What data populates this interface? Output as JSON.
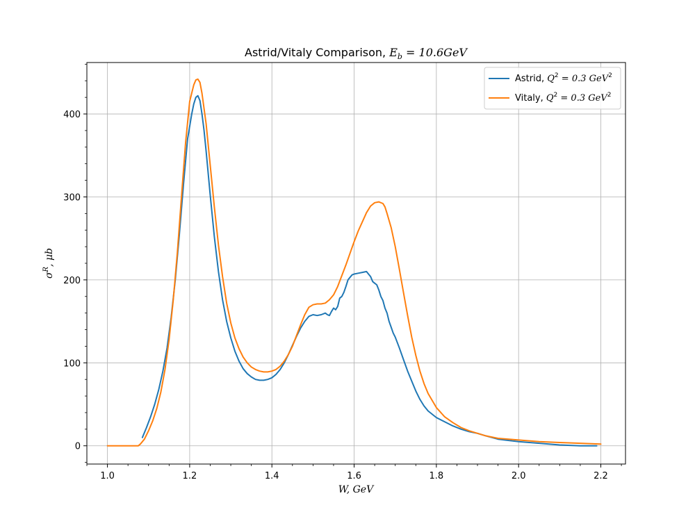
{
  "chart_data": {
    "type": "line",
    "title": "Astrid/Vitaly Comparison, E_b = 10.6GeV",
    "title_parts": {
      "prefix": "Astrid/Vitaly Comparison, ",
      "math": "E",
      "sub": "b",
      "suffix": " = 10.6GeV"
    },
    "xlabel": "W, GeV",
    "ylabel": "σ^R, μb",
    "xlim": [
      0.95,
      2.26
    ],
    "ylim": [
      -22,
      462
    ],
    "xticks": [
      1.0,
      1.2,
      1.4,
      1.6,
      1.8,
      2.0,
      2.2
    ],
    "xtick_labels": [
      "1.0",
      "1.2",
      "1.4",
      "1.6",
      "1.8",
      "2.0",
      "2.2"
    ],
    "yticks": [
      0,
      100,
      200,
      300,
      400
    ],
    "ytick_labels": [
      "0",
      "100",
      "200",
      "300",
      "400"
    ],
    "grid": true,
    "legend_position": "top-right",
    "series": [
      {
        "name": "Astrid, Q^2 = 0.3 GeV^2",
        "legend_label": {
          "prefix": "Astrid, ",
          "math": "Q",
          "sup": "2",
          "mid": " = 0.3 GeV",
          "sup2": "2"
        },
        "color": "#1f77b4",
        "x": [
          1.085,
          1.095,
          1.105,
          1.115,
          1.125,
          1.135,
          1.145,
          1.155,
          1.165,
          1.175,
          1.185,
          1.195,
          1.205,
          1.21,
          1.215,
          1.22,
          1.225,
          1.23,
          1.235,
          1.24,
          1.25,
          1.26,
          1.27,
          1.28,
          1.29,
          1.3,
          1.31,
          1.32,
          1.33,
          1.34,
          1.35,
          1.36,
          1.37,
          1.38,
          1.39,
          1.4,
          1.41,
          1.42,
          1.43,
          1.44,
          1.45,
          1.46,
          1.47,
          1.48,
          1.49,
          1.5,
          1.51,
          1.52,
          1.53,
          1.535,
          1.54,
          1.545,
          1.55,
          1.555,
          1.56,
          1.565,
          1.57,
          1.575,
          1.58,
          1.585,
          1.59,
          1.595,
          1.6,
          1.61,
          1.62,
          1.63,
          1.635,
          1.64,
          1.645,
          1.65,
          1.655,
          1.66,
          1.665,
          1.67,
          1.675,
          1.68,
          1.685,
          1.69,
          1.695,
          1.7,
          1.71,
          1.72,
          1.73,
          1.74,
          1.75,
          1.76,
          1.77,
          1.78,
          1.8,
          1.82,
          1.84,
          1.86,
          1.88,
          1.9,
          1.92,
          1.95,
          2.0,
          2.05,
          2.1,
          2.15,
          2.19
        ],
        "y": [
          10,
          22,
          35,
          50,
          68,
          90,
          118,
          155,
          200,
          255,
          315,
          370,
          400,
          412,
          420,
          422,
          416,
          400,
          380,
          355,
          302,
          252,
          210,
          176,
          150,
          130,
          114,
          102,
          93,
          87,
          83,
          80,
          79,
          79,
          80,
          82,
          86,
          92,
          100,
          110,
          121,
          132,
          142,
          150,
          156,
          158,
          157,
          158,
          160,
          158,
          157,
          162,
          166,
          164,
          168,
          178,
          180,
          185,
          192,
          200,
          203,
          206,
          207,
          208,
          209,
          210,
          207,
          204,
          198,
          196,
          194,
          188,
          180,
          175,
          166,
          160,
          150,
          143,
          136,
          131,
          118,
          104,
          90,
          78,
          66,
          56,
          48,
          42,
          34,
          29,
          24,
          20,
          17,
          15,
          12,
          8,
          5,
          3,
          1,
          0,
          0
        ]
      },
      {
        "name": "Vitaly, Q^2 = 0.3 GeV^2",
        "legend_label": {
          "prefix": "Vitaly, ",
          "math": "Q",
          "sup": "2",
          "mid": " = 0.3 GeV",
          "sup2": "2"
        },
        "color": "#ff7f0e",
        "x": [
          1.0,
          1.02,
          1.04,
          1.06,
          1.075,
          1.08,
          1.09,
          1.1,
          1.11,
          1.12,
          1.13,
          1.14,
          1.15,
          1.16,
          1.17,
          1.18,
          1.19,
          1.2,
          1.21,
          1.215,
          1.22,
          1.225,
          1.23,
          1.24,
          1.25,
          1.26,
          1.27,
          1.28,
          1.29,
          1.3,
          1.31,
          1.32,
          1.33,
          1.34,
          1.35,
          1.36,
          1.37,
          1.38,
          1.39,
          1.4,
          1.41,
          1.42,
          1.43,
          1.44,
          1.45,
          1.46,
          1.47,
          1.48,
          1.49,
          1.5,
          1.51,
          1.52,
          1.53,
          1.54,
          1.55,
          1.56,
          1.57,
          1.58,
          1.59,
          1.6,
          1.61,
          1.62,
          1.63,
          1.64,
          1.65,
          1.66,
          1.67,
          1.675,
          1.68,
          1.69,
          1.7,
          1.71,
          1.72,
          1.73,
          1.74,
          1.75,
          1.76,
          1.77,
          1.78,
          1.8,
          1.82,
          1.84,
          1.86,
          1.88,
          1.9,
          1.92,
          1.95,
          2.0,
          2.05,
          2.1,
          2.15,
          2.2
        ],
        "y": [
          0,
          0,
          0,
          0,
          0,
          2,
          8,
          18,
          30,
          45,
          65,
          92,
          128,
          175,
          233,
          300,
          365,
          415,
          435,
          441,
          442,
          438,
          425,
          388,
          338,
          288,
          242,
          204,
          172,
          148,
          130,
          117,
          107,
          100,
          95,
          92,
          90,
          89,
          89,
          90,
          92,
          96,
          102,
          110,
          120,
          133,
          146,
          158,
          167,
          170,
          171,
          171,
          172,
          176,
          182,
          192,
          205,
          218,
          232,
          246,
          259,
          270,
          281,
          289,
          293,
          294,
          292,
          288,
          280,
          263,
          240,
          213,
          185,
          157,
          131,
          109,
          90,
          75,
          63,
          46,
          35,
          28,
          22,
          18,
          15,
          12,
          9,
          7,
          5,
          4,
          3,
          2
        ]
      }
    ]
  },
  "labels": {
    "title_prefix": "Astrid/Vitaly Comparison, ",
    "title_math": "E",
    "title_sub": "b",
    "title_suffix": " = 10.6GeV",
    "xlabel": "W, GeV",
    "ylabel_sigma": "σ",
    "ylabel_sup": "R",
    "ylabel_rest": ", μb",
    "legend_0_prefix": "Astrid, ",
    "legend_1_prefix": "Vitaly, ",
    "legend_q": "Q",
    "legend_sup": "2",
    "legend_mid": " = 0.3 GeV"
  }
}
